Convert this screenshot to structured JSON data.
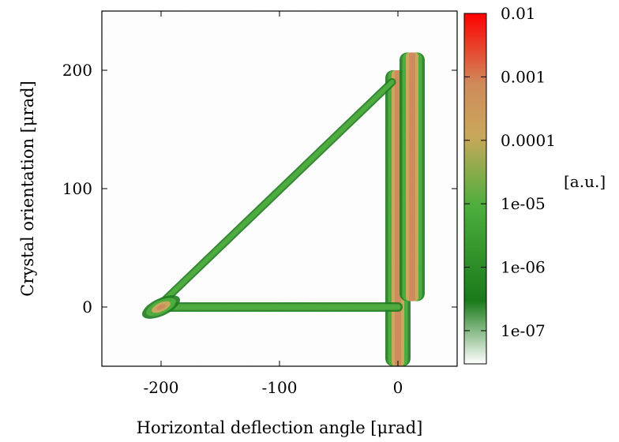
{
  "chart_data": {
    "type": "heatmap",
    "title": "",
    "xlabel": "Horizontal deflection angle [μrad]",
    "ylabel": "Crystal orientation [μrad]",
    "xlim": [
      -250,
      50
    ],
    "ylim": [
      -50,
      250
    ],
    "x_ticks": [
      {
        "value": -200,
        "label": "-200"
      },
      {
        "value": -100,
        "label": "-100"
      },
      {
        "value": 0,
        "label": "0"
      }
    ],
    "y_ticks": [
      {
        "value": 0,
        "label": "0"
      },
      {
        "value": 100,
        "label": "100"
      },
      {
        "value": 200,
        "label": "200"
      }
    ],
    "colorbar": {
      "label": "[a.u.]",
      "scale": "log",
      "range": [
        3e-08,
        0.01
      ],
      "ticks": [
        {
          "value": 0.01,
          "label": "0.01"
        },
        {
          "value": 0.001,
          "label": "0.001"
        },
        {
          "value": 0.0001,
          "label": "0.0001"
        },
        {
          "value": 1e-05,
          "label": "1e-05"
        },
        {
          "value": 1e-06,
          "label": "1e-06"
        },
        {
          "value": 1e-07,
          "label": "1e-07"
        }
      ],
      "colors": [
        "#ffffff",
        "#1a7a1a",
        "#4cae3c",
        "#c9a85a",
        "#d08a5a",
        "#ff0000"
      ]
    },
    "features": [
      {
        "type": "vertical-band",
        "x_center": 0,
        "y_range": [
          -50,
          200
        ],
        "peak": 0.0003
      },
      {
        "type": "vertical-band",
        "x_center": 12,
        "y_range": [
          5,
          215
        ],
        "peak": 0.0003
      },
      {
        "type": "diagonal-band",
        "from": [
          -203,
          0
        ],
        "to": [
          -5,
          190
        ],
        "peak": 2e-06
      },
      {
        "type": "horizontal-band",
        "x_range": [
          -200,
          0
        ],
        "y_center": 0,
        "peak": 1.5e-06
      },
      {
        "type": "spot",
        "x": -200,
        "y": 0,
        "peak": 0.0003
      }
    ]
  }
}
